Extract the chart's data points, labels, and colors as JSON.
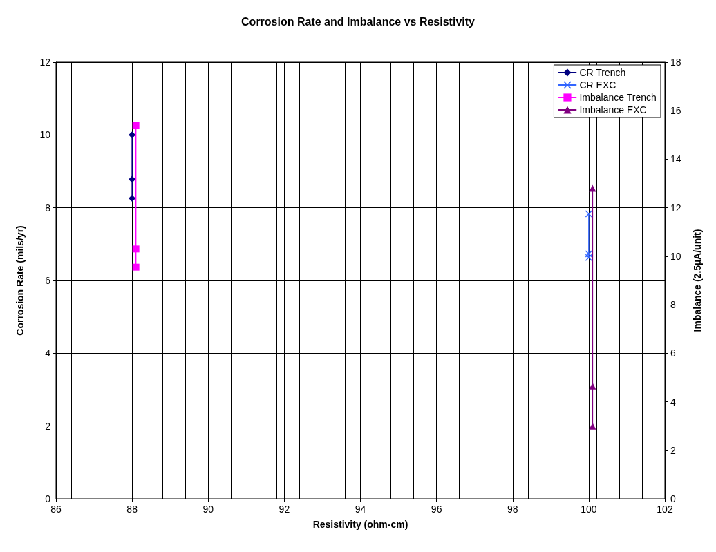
{
  "chart_data": {
    "type": "line",
    "title": "Corrosion Rate and Imbalance vs Resistivity",
    "xlabel": "Resistivity (ohm-cm)",
    "ylabel": "Corrosion Rate (mils/yr)",
    "y2label": "Imbalance (2.5µA/unit)",
    "xlim": [
      86,
      102
    ],
    "xticks": [
      86,
      88,
      90,
      92,
      94,
      96,
      98,
      100,
      102
    ],
    "ylim": [
      0,
      12
    ],
    "yticks": [
      0,
      2,
      4,
      6,
      8,
      10,
      12
    ],
    "y2lim": [
      0,
      18
    ],
    "y2ticks": [
      0,
      2,
      4,
      6,
      8,
      10,
      12,
      14,
      16,
      18
    ],
    "grid": true,
    "legend": "top right",
    "series": [
      {
        "name": "CR Trench",
        "color": "#000080",
        "marker": "diamond",
        "x": [
          88,
          88,
          88
        ],
        "values": [
          10.0,
          8.78,
          8.26
        ]
      },
      {
        "name": "CR EXC",
        "color": "#3366ff",
        "marker": "cross",
        "x": [
          100,
          100,
          100
        ],
        "values": [
          7.83,
          6.73,
          6.63
        ]
      },
      {
        "name": "Imbalance Trench",
        "color": "#ff00ff",
        "marker": "square",
        "axis": "y2",
        "x": [
          88.1,
          88.1,
          88.1
        ],
        "values": [
          15.4,
          10.3,
          9.55
        ]
      },
      {
        "name": "Imbalance EXC",
        "color": "#800080",
        "marker": "triangle",
        "axis": "y2",
        "x": [
          100.1,
          100.1,
          100.1
        ],
        "values": [
          12.8,
          4.65,
          3.0
        ]
      }
    ]
  }
}
